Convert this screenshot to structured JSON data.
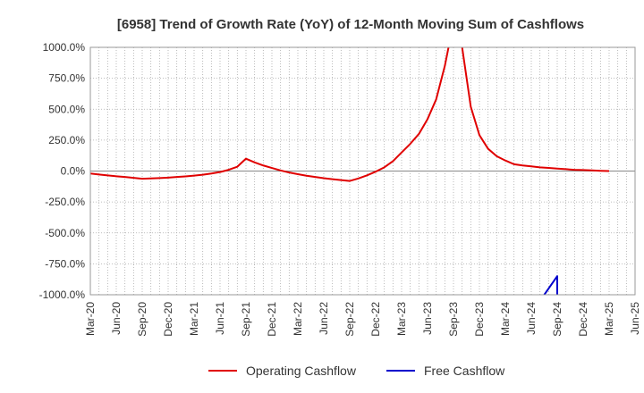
{
  "chart_data": {
    "type": "line",
    "title": "[6958]  Trend of Growth Rate (YoY) of 12-Month Moving Sum of Cashflows",
    "xlabel": "",
    "ylabel": "",
    "ylim": [
      -1000,
      1000
    ],
    "yticks": [
      "1000.0%",
      "750.0%",
      "500.0%",
      "250.0%",
      "0.0%",
      "-250.0%",
      "-500.0%",
      "-750.0%",
      "-1000.0%"
    ],
    "ytick_values": [
      1000,
      750,
      500,
      250,
      0,
      -250,
      -500,
      -750,
      -1000
    ],
    "xticks": [
      "Mar-20",
      "Jun-20",
      "Sep-20",
      "Dec-20",
      "Mar-21",
      "Jun-21",
      "Sep-21",
      "Dec-21",
      "Mar-22",
      "Jun-22",
      "Sep-22",
      "Dec-22",
      "Mar-23",
      "Jun-23",
      "Sep-23",
      "Dec-23",
      "Mar-24",
      "Jun-24",
      "Sep-24",
      "Dec-24",
      "Mar-25",
      "Jun-25"
    ],
    "grid": true,
    "legend_position": "bottom",
    "series": [
      {
        "name": "Operating Cashflow",
        "color": "#e00000",
        "points": [
          [
            "Mar-20",
            -20
          ],
          [
            "Apr-20",
            -28
          ],
          [
            "May-20",
            -35
          ],
          [
            "Jun-20",
            -42
          ],
          [
            "Jul-20",
            -48
          ],
          [
            "Aug-20",
            -55
          ],
          [
            "Sep-20",
            -62
          ],
          [
            "Oct-20",
            -60
          ],
          [
            "Nov-20",
            -57
          ],
          [
            "Dec-20",
            -53
          ],
          [
            "Jan-21",
            -48
          ],
          [
            "Feb-21",
            -43
          ],
          [
            "Mar-21",
            -37
          ],
          [
            "Apr-21",
            -30
          ],
          [
            "May-21",
            -20
          ],
          [
            "Jun-21",
            -8
          ],
          [
            "Jul-21",
            10
          ],
          [
            "Aug-21",
            35
          ],
          [
            "Sep-21",
            100
          ],
          [
            "Oct-21",
            70
          ],
          [
            "Nov-21",
            45
          ],
          [
            "Dec-21",
            25
          ],
          [
            "Jan-22",
            5
          ],
          [
            "Feb-22",
            -12
          ],
          [
            "Mar-22",
            -25
          ],
          [
            "Apr-22",
            -38
          ],
          [
            "May-22",
            -48
          ],
          [
            "Jun-22",
            -58
          ],
          [
            "Jul-22",
            -66
          ],
          [
            "Aug-22",
            -73
          ],
          [
            "Sep-22",
            -80
          ],
          [
            "Oct-22",
            -60
          ],
          [
            "Nov-22",
            -35
          ],
          [
            "Dec-22",
            -5
          ],
          [
            "Jan-23",
            30
          ],
          [
            "Feb-23",
            80
          ],
          [
            "Mar-23",
            150
          ],
          [
            "Apr-23",
            220
          ],
          [
            "May-23",
            300
          ],
          [
            "Jun-23",
            420
          ],
          [
            "Jul-23",
            580
          ],
          [
            "Aug-23",
            850
          ],
          [
            "Sep-23",
            1200
          ],
          [
            "Oct-23",
            1000
          ],
          [
            "Nov-23",
            520
          ],
          [
            "Dec-23",
            290
          ],
          [
            "Jan-24",
            180
          ],
          [
            "Feb-24",
            120
          ],
          [
            "Mar-24",
            85
          ],
          [
            "Apr-24",
            55
          ],
          [
            "May-24",
            45
          ],
          [
            "Jun-24",
            38
          ],
          [
            "Jul-24",
            30
          ],
          [
            "Aug-24",
            25
          ],
          [
            "Sep-24",
            20
          ],
          [
            "Oct-24",
            15
          ],
          [
            "Nov-24",
            10
          ],
          [
            "Dec-24",
            8
          ],
          [
            "Jan-25",
            5
          ],
          [
            "Feb-25",
            2
          ],
          [
            "Mar-25",
            0
          ]
        ]
      },
      {
        "name": "Free Cashflow",
        "color": "#0000cc",
        "points": [
          [
            "Jul-24",
            -1050
          ],
          [
            "Aug-24",
            -950
          ],
          [
            "Sep-24",
            -850
          ],
          [
            "Sep-24",
            -1050
          ]
        ]
      }
    ]
  }
}
